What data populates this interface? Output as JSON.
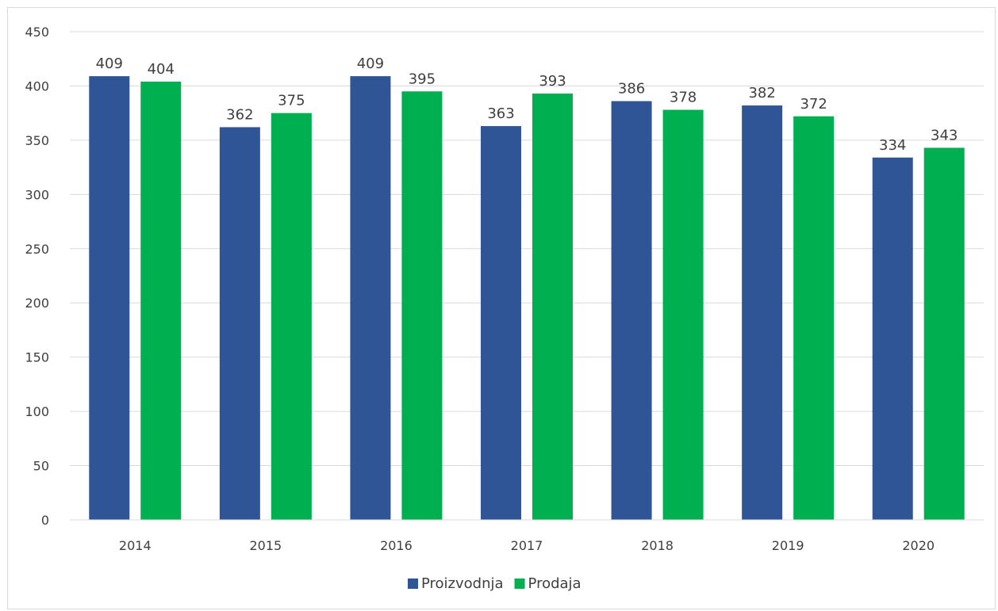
{
  "chart_data": {
    "type": "bar",
    "categories": [
      "2014",
      "2015",
      "2016",
      "2017",
      "2018",
      "2019",
      "2020"
    ],
    "series": [
      {
        "name": "Proizvodnja",
        "values": [
          409,
          362,
          409,
          363,
          386,
          382,
          334
        ],
        "color": "#2f5597"
      },
      {
        "name": "Prodaja",
        "values": [
          404,
          375,
          395,
          393,
          378,
          372,
          343
        ],
        "color": "#00b050"
      }
    ],
    "title": "",
    "xlabel": "",
    "ylabel": "",
    "ylim": [
      0,
      450
    ],
    "yticks": [
      0,
      50,
      100,
      150,
      200,
      250,
      300,
      350,
      400,
      450
    ],
    "grid": true,
    "legend": "bottom",
    "data_labels": true
  }
}
